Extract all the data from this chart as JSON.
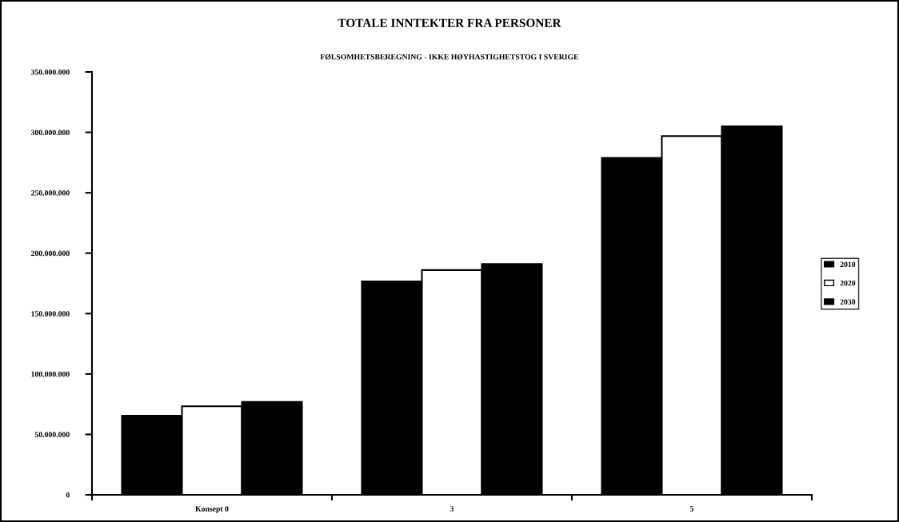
{
  "chart_data": {
    "type": "bar",
    "title": "TOTALE INNTEKTER FRA PERSONER",
    "subtitle": "FØLSOMHETSBEREGNING - IKKE HØYHASTIGHETSTOG I SVERIGE",
    "categories": [
      "Konsept 0",
      "3",
      "5"
    ],
    "series": [
      {
        "name": "2010",
        "color": "#000000",
        "values": [
          65400000,
          176600000,
          278800000
        ]
      },
      {
        "name": "2020",
        "color": "#ffffff",
        "values": [
          73300000,
          186000000,
          296900000
        ]
      },
      {
        "name": "2030",
        "color": "#000000",
        "values": [
          76900000,
          191000000,
          305000000
        ]
      }
    ],
    "ylim": [
      0,
      350000000
    ],
    "yticks": [
      {
        "value": 0,
        "label": "0"
      },
      {
        "value": 50000000,
        "label": "50.000.000"
      },
      {
        "value": 100000000,
        "label": "100.000.000"
      },
      {
        "value": 150000000,
        "label": "150.000.000"
      },
      {
        "value": 200000000,
        "label": "200.000.000"
      },
      {
        "value": 250000000,
        "label": "250.000.000"
      },
      {
        "value": 300000000,
        "label": "300.000.000"
      },
      {
        "value": 350000000,
        "label": "350.000.000"
      }
    ],
    "grid": false,
    "legend": "right"
  }
}
